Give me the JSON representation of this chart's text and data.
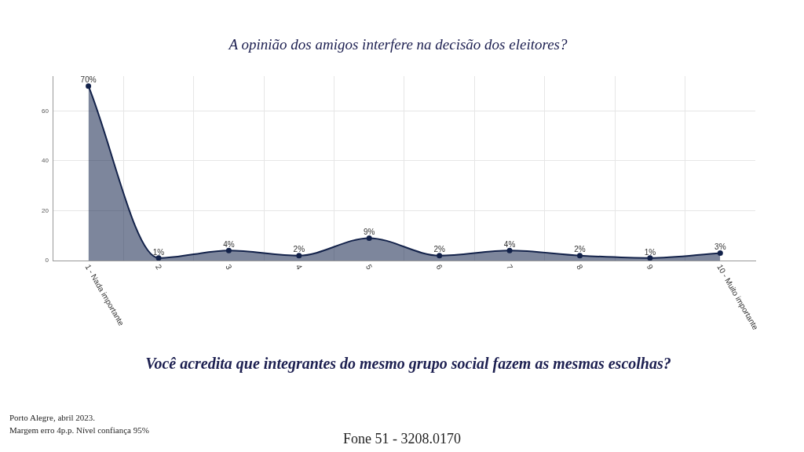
{
  "chart_data": {
    "type": "area",
    "title": "A opinião dos amigos interfere na decisão dos eleitores?",
    "categories": [
      "1 - Nada importante",
      "2",
      "3",
      "4",
      "5",
      "6",
      "7",
      "8",
      "9",
      "10 - Muito importante"
    ],
    "values": [
      70,
      1,
      4,
      2,
      9,
      2,
      4,
      2,
      1,
      3
    ],
    "value_labels": [
      "70%",
      "1%",
      "4%",
      "2%",
      "9%",
      "2%",
      "4%",
      "2%",
      "1%",
      "3%"
    ],
    "color": "#13224a",
    "ylim": [
      0,
      74
    ],
    "yticks": [
      0,
      20,
      40,
      60
    ],
    "grid": true,
    "marker": "circle",
    "line_style": "solid",
    "annotations": [
      "Você acredita que integrantes do mesmo grupo social fazem as mesmas escolhas?",
      "Porto Alegre, abril 2023.",
      "Margem erro 4p.p. Nível confiança 95%",
      "Fone 51 - 3208.0170"
    ]
  }
}
